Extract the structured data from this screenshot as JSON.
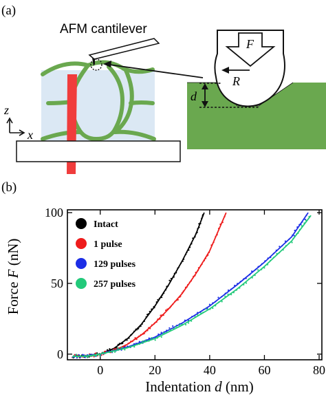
{
  "panel_a": {
    "label": "(a)",
    "cantilever_label": "AFM cantilever",
    "force_symbol": "F",
    "radius_symbol": "R",
    "depth_symbol": "d",
    "axis_z": "z",
    "axis_x": "x",
    "colors": {
      "cell_wall": "#6aa84f",
      "cell_fill": "#dbe8f4",
      "laser": "#f03c3c",
      "substrate": "#ffffff",
      "outline": "#111111"
    }
  },
  "panel_b": {
    "label": "(b)",
    "ylabel_prefix": "Force ",
    "ylabel_symbol": "F",
    "ylabel_unit": " (nN)",
    "xlabel_prefix": "Indentation ",
    "xlabel_symbol": "d",
    "xlabel_unit": " (nm)"
  },
  "chart_data": {
    "type": "scatter",
    "title": "",
    "xlabel": "Indentation d (nm)",
    "ylabel": "Force F (nN)",
    "xlim": [
      -12,
      81
    ],
    "ylim": [
      -4,
      102
    ],
    "x_ticks": [
      0,
      20,
      40,
      60,
      80
    ],
    "y_ticks": [
      0,
      50,
      100
    ],
    "legend_position": "top-left",
    "grid": false,
    "series": [
      {
        "name": "Intact",
        "color": "#000000",
        "x": [
          -10,
          -5,
          0,
          5,
          10,
          15,
          20,
          25,
          30,
          35,
          38
        ],
        "y": [
          -1.5,
          -1.5,
          0,
          4,
          11,
          21,
          34,
          49,
          66,
          85,
          100
        ]
      },
      {
        "name": "1 pulse",
        "color": "#ee1c1c",
        "x": [
          -10,
          -5,
          0,
          5,
          10,
          15,
          20,
          25,
          30,
          35,
          40,
          46
        ],
        "y": [
          -1.5,
          -1.5,
          0,
          2.5,
          7,
          13.5,
          22,
          32,
          43,
          57,
          73,
          100
        ]
      },
      {
        "name": "129 pulses",
        "color": "#1c2ee6",
        "x": [
          -10,
          -5,
          0,
          10,
          20,
          30,
          40,
          50,
          60,
          70,
          76
        ],
        "y": [
          -1.5,
          -1.5,
          0,
          5,
          12,
          22,
          34,
          49,
          65,
          83,
          100
        ]
      },
      {
        "name": "257 pulses",
        "color": "#22c97a",
        "x": [
          -10,
          -5,
          0,
          10,
          20,
          30,
          40,
          50,
          60,
          70,
          77
        ],
        "y": [
          -1.5,
          -1.5,
          0,
          4.5,
          11,
          20.5,
          32,
          46,
          62,
          80,
          98
        ]
      }
    ]
  }
}
